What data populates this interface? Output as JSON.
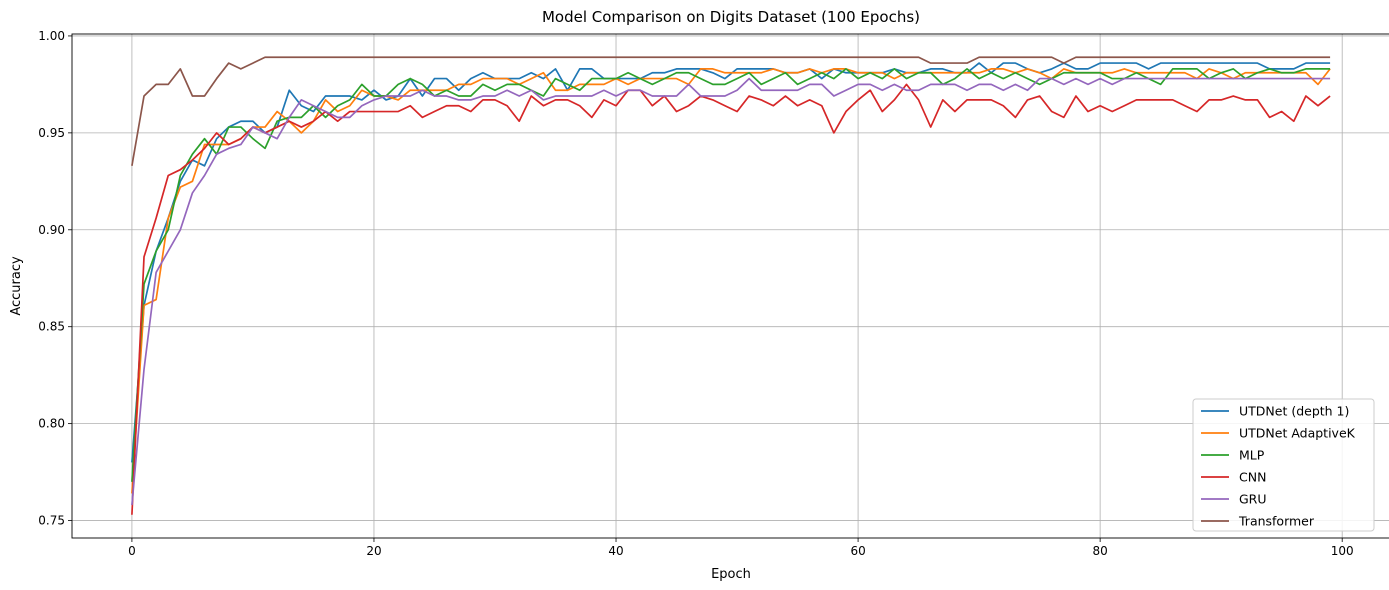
{
  "chart_data": {
    "type": "line",
    "title": "Model Comparison on Digits Dataset (100 Epochs)",
    "xlabel": "Epoch",
    "ylabel": "Accuracy",
    "xlim": [
      -4.95,
      103.95
    ],
    "ylim": [
      0.741,
      1.001
    ],
    "xticks": [
      0,
      20,
      40,
      60,
      80,
      100
    ],
    "yticks": [
      0.75,
      0.8,
      0.85,
      0.9,
      0.95,
      1.0
    ],
    "ytick_labels": [
      "0.75",
      "0.80",
      "0.85",
      "0.90",
      "0.95",
      "1.00"
    ],
    "grid": true,
    "legend_position": "lower right",
    "x": [
      0,
      1,
      2,
      3,
      4,
      5,
      6,
      7,
      8,
      9,
      10,
      11,
      12,
      13,
      14,
      15,
      16,
      17,
      18,
      19,
      20,
      21,
      22,
      23,
      24,
      25,
      26,
      27,
      28,
      29,
      30,
      31,
      32,
      33,
      34,
      35,
      36,
      37,
      38,
      39,
      40,
      41,
      42,
      43,
      44,
      45,
      46,
      47,
      48,
      49,
      50,
      51,
      52,
      53,
      54,
      55,
      56,
      57,
      58,
      59,
      60,
      61,
      62,
      63,
      64,
      65,
      66,
      67,
      68,
      69,
      70,
      71,
      72,
      73,
      74,
      75,
      76,
      77,
      78,
      79,
      80,
      81,
      82,
      83,
      84,
      85,
      86,
      87,
      88,
      89,
      90,
      91,
      92,
      93,
      94,
      95,
      96,
      97,
      98,
      99
    ],
    "series": [
      {
        "name": "UTDNet (depth 1)",
        "color": "#1f77b4",
        "values": [
          0.78,
          0.861,
          0.889,
          0.906,
          0.925,
          0.936,
          0.933,
          0.947,
          0.953,
          0.956,
          0.956,
          0.95,
          0.953,
          0.972,
          0.964,
          0.961,
          0.969,
          0.969,
          0.969,
          0.967,
          0.972,
          0.967,
          0.969,
          0.978,
          0.969,
          0.978,
          0.978,
          0.972,
          0.978,
          0.981,
          0.978,
          0.978,
          0.978,
          0.981,
          0.978,
          0.983,
          0.972,
          0.983,
          0.983,
          0.978,
          0.978,
          0.978,
          0.978,
          0.981,
          0.981,
          0.983,
          0.983,
          0.983,
          0.981,
          0.978,
          0.983,
          0.983,
          0.983,
          0.983,
          0.981,
          0.981,
          0.983,
          0.978,
          0.983,
          0.981,
          0.981,
          0.981,
          0.981,
          0.983,
          0.981,
          0.981,
          0.983,
          0.983,
          0.981,
          0.981,
          0.986,
          0.981,
          0.986,
          0.986,
          0.983,
          0.981,
          0.983,
          0.986,
          0.983,
          0.983,
          0.986,
          0.986,
          0.986,
          0.986,
          0.983,
          0.986,
          0.986,
          0.986,
          0.986,
          0.986,
          0.986,
          0.986,
          0.986,
          0.986,
          0.983,
          0.983,
          0.983,
          0.986,
          0.986,
          0.986
        ]
      },
      {
        "name": "UTDNet AdaptiveK",
        "color": "#ff7f0e",
        "values": [
          0.764,
          0.861,
          0.864,
          0.906,
          0.922,
          0.925,
          0.944,
          0.944,
          0.944,
          0.947,
          0.953,
          0.953,
          0.961,
          0.956,
          0.95,
          0.956,
          0.967,
          0.961,
          0.964,
          0.972,
          0.969,
          0.969,
          0.967,
          0.972,
          0.972,
          0.972,
          0.972,
          0.975,
          0.975,
          0.978,
          0.978,
          0.978,
          0.975,
          0.978,
          0.981,
          0.972,
          0.972,
          0.975,
          0.975,
          0.975,
          0.978,
          0.975,
          0.978,
          0.978,
          0.978,
          0.978,
          0.975,
          0.983,
          0.983,
          0.981,
          0.981,
          0.981,
          0.981,
          0.983,
          0.981,
          0.981,
          0.983,
          0.981,
          0.983,
          0.983,
          0.981,
          0.981,
          0.981,
          0.978,
          0.981,
          0.981,
          0.981,
          0.981,
          0.981,
          0.981,
          0.981,
          0.983,
          0.983,
          0.981,
          0.983,
          0.981,
          0.978,
          0.983,
          0.981,
          0.981,
          0.981,
          0.981,
          0.983,
          0.981,
          0.981,
          0.981,
          0.981,
          0.981,
          0.978,
          0.983,
          0.981,
          0.978,
          0.981,
          0.981,
          0.981,
          0.981,
          0.981,
          0.981,
          0.975,
          0.983
        ]
      },
      {
        "name": "MLP",
        "color": "#2ca02c",
        "values": [
          0.77,
          0.872,
          0.889,
          0.9,
          0.928,
          0.939,
          0.947,
          0.939,
          0.953,
          0.953,
          0.947,
          0.942,
          0.956,
          0.958,
          0.958,
          0.964,
          0.958,
          0.964,
          0.967,
          0.975,
          0.969,
          0.969,
          0.975,
          0.978,
          0.975,
          0.969,
          0.972,
          0.969,
          0.969,
          0.975,
          0.972,
          0.975,
          0.975,
          0.972,
          0.969,
          0.978,
          0.975,
          0.972,
          0.978,
          0.978,
          0.978,
          0.981,
          0.978,
          0.975,
          0.978,
          0.981,
          0.981,
          0.978,
          0.975,
          0.975,
          0.978,
          0.981,
          0.975,
          0.978,
          0.981,
          0.975,
          0.978,
          0.981,
          0.978,
          0.983,
          0.978,
          0.981,
          0.978,
          0.983,
          0.978,
          0.981,
          0.981,
          0.975,
          0.978,
          0.983,
          0.978,
          0.981,
          0.978,
          0.981,
          0.978,
          0.975,
          0.978,
          0.981,
          0.981,
          0.981,
          0.981,
          0.978,
          0.978,
          0.981,
          0.978,
          0.975,
          0.983,
          0.983,
          0.983,
          0.978,
          0.981,
          0.983,
          0.978,
          0.981,
          0.983,
          0.981,
          0.981,
          0.983,
          0.983,
          0.983
        ]
      },
      {
        "name": "CNN",
        "color": "#d62728",
        "values": [
          0.753,
          0.886,
          0.906,
          0.928,
          0.931,
          0.936,
          0.942,
          0.95,
          0.944,
          0.947,
          0.953,
          0.95,
          0.953,
          0.956,
          0.953,
          0.956,
          0.961,
          0.956,
          0.961,
          0.961,
          0.961,
          0.961,
          0.961,
          0.964,
          0.958,
          0.961,
          0.964,
          0.964,
          0.961,
          0.967,
          0.967,
          0.964,
          0.956,
          0.969,
          0.964,
          0.967,
          0.967,
          0.964,
          0.958,
          0.967,
          0.964,
          0.972,
          0.972,
          0.964,
          0.969,
          0.961,
          0.964,
          0.969,
          0.967,
          0.964,
          0.961,
          0.969,
          0.967,
          0.964,
          0.969,
          0.964,
          0.967,
          0.964,
          0.95,
          0.961,
          0.967,
          0.972,
          0.961,
          0.967,
          0.975,
          0.967,
          0.953,
          0.967,
          0.961,
          0.967,
          0.967,
          0.967,
          0.964,
          0.958,
          0.967,
          0.969,
          0.961,
          0.958,
          0.969,
          0.961,
          0.964,
          0.961,
          0.964,
          0.967,
          0.967,
          0.967,
          0.967,
          0.964,
          0.961,
          0.967,
          0.967,
          0.969,
          0.967,
          0.967,
          0.958,
          0.961,
          0.956,
          0.969,
          0.964,
          0.969
        ]
      },
      {
        "name": "GRU",
        "color": "#9467bd",
        "values": [
          0.758,
          0.828,
          0.878,
          0.889,
          0.9,
          0.919,
          0.928,
          0.939,
          0.942,
          0.944,
          0.953,
          0.95,
          0.947,
          0.958,
          0.967,
          0.964,
          0.961,
          0.958,
          0.958,
          0.964,
          0.967,
          0.969,
          0.969,
          0.969,
          0.972,
          0.969,
          0.969,
          0.967,
          0.967,
          0.969,
          0.969,
          0.972,
          0.969,
          0.972,
          0.967,
          0.969,
          0.969,
          0.969,
          0.969,
          0.972,
          0.969,
          0.972,
          0.972,
          0.969,
          0.969,
          0.969,
          0.975,
          0.969,
          0.969,
          0.969,
          0.972,
          0.978,
          0.972,
          0.972,
          0.972,
          0.972,
          0.975,
          0.975,
          0.969,
          0.972,
          0.975,
          0.975,
          0.972,
          0.975,
          0.972,
          0.972,
          0.975,
          0.975,
          0.975,
          0.972,
          0.975,
          0.975,
          0.972,
          0.975,
          0.972,
          0.978,
          0.978,
          0.975,
          0.978,
          0.975,
          0.978,
          0.975,
          0.978,
          0.978,
          0.978,
          0.978,
          0.978,
          0.978,
          0.978,
          0.978,
          0.978,
          0.978,
          0.978,
          0.978,
          0.978,
          0.978,
          0.978,
          0.978,
          0.978,
          0.978
        ]
      },
      {
        "name": "Transformer",
        "color": "#8c564b",
        "values": [
          0.933,
          0.969,
          0.975,
          0.975,
          0.983,
          0.969,
          0.969,
          0.978,
          0.986,
          0.983,
          0.986,
          0.989,
          0.989,
          0.989,
          0.989,
          0.989,
          0.989,
          0.989,
          0.989,
          0.989,
          0.989,
          0.989,
          0.989,
          0.989,
          0.989,
          0.989,
          0.989,
          0.989,
          0.989,
          0.989,
          0.989,
          0.989,
          0.989,
          0.989,
          0.989,
          0.989,
          0.989,
          0.989,
          0.989,
          0.989,
          0.989,
          0.989,
          0.989,
          0.989,
          0.989,
          0.989,
          0.989,
          0.989,
          0.989,
          0.989,
          0.989,
          0.989,
          0.989,
          0.989,
          0.989,
          0.989,
          0.989,
          0.989,
          0.989,
          0.989,
          0.989,
          0.989,
          0.989,
          0.989,
          0.989,
          0.989,
          0.986,
          0.986,
          0.986,
          0.986,
          0.989,
          0.989,
          0.989,
          0.989,
          0.989,
          0.989,
          0.989,
          0.986,
          0.989,
          0.989,
          0.989,
          0.989,
          0.989,
          0.989,
          0.989,
          0.989,
          0.989,
          0.989,
          0.989,
          0.989,
          0.989,
          0.989,
          0.989,
          0.989,
          0.989,
          0.989,
          0.989,
          0.989,
          0.989,
          0.989
        ]
      }
    ]
  }
}
